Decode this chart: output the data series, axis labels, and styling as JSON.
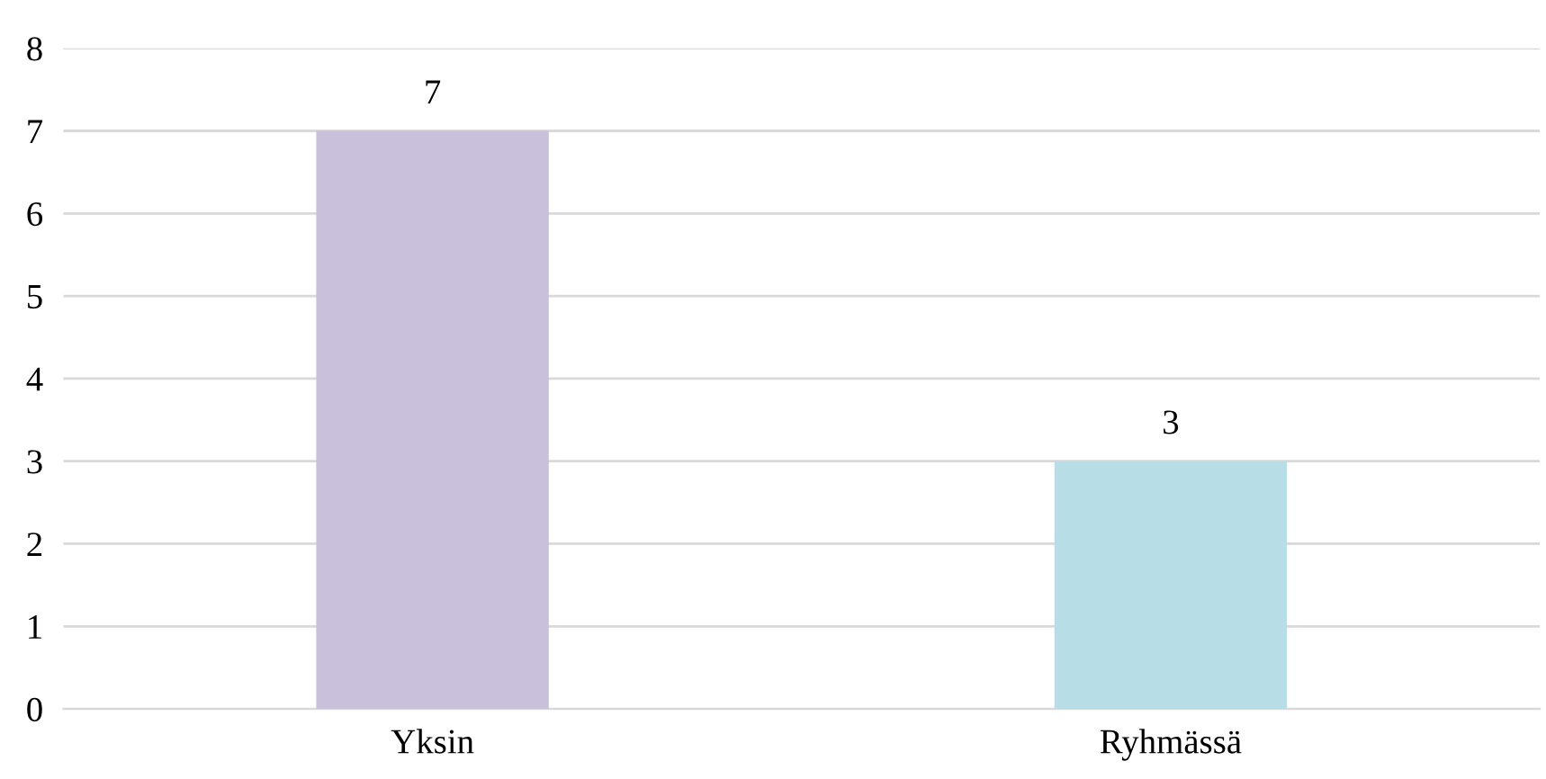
{
  "chart_data": {
    "type": "bar",
    "categories": [
      "Yksin",
      "Ryhmässä"
    ],
    "values": [
      7,
      3
    ],
    "colors": [
      "#c9c0db",
      "#b7dde6"
    ],
    "ylim": [
      0,
      8
    ],
    "yticks": [
      0,
      1,
      2,
      3,
      4,
      5,
      6,
      7,
      8
    ],
    "grid": "y",
    "data_labels": true
  }
}
